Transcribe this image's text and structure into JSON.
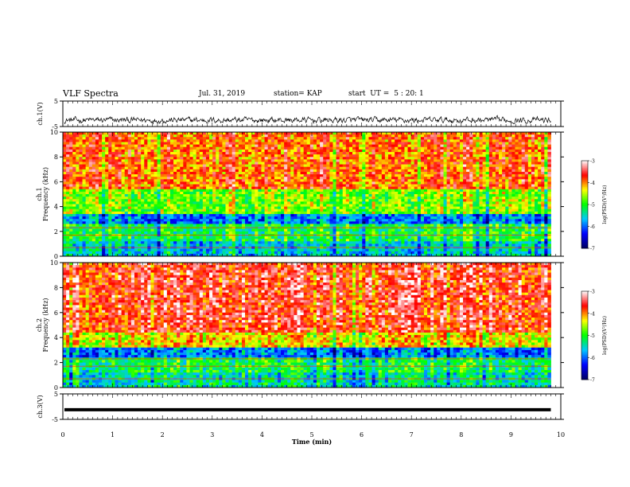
{
  "header": {
    "title": "VLF Spectra",
    "date": "Jul. 31, 2019",
    "station": "station= KAP",
    "start_label": "start  UT =",
    "start_value": "5 : 20: 1"
  },
  "chart_data": [
    {
      "type": "line",
      "name": "ch1-waveform",
      "ylabel": "ch.1(V)",
      "ylim": [
        -5,
        5
      ],
      "yticks": [
        5,
        -5
      ],
      "xlim": [
        0,
        10
      ],
      "approx_level_v": -2.5,
      "approx_range_v": [
        -4.6,
        0.2
      ]
    },
    {
      "type": "heatmap",
      "name": "ch1-spectrogram",
      "ylabel": "ch.1  Frequency (kHz)",
      "ylim": [
        0,
        10
      ],
      "yticks": [
        0,
        2,
        4,
        6,
        8,
        10
      ],
      "xlim": [
        0,
        10
      ],
      "data_end_min": 9.8,
      "approx_log_psd_by_band": [
        {
          "freq_khz": [
            0,
            1.2
          ],
          "value": -5.5
        },
        {
          "freq_khz": [
            1.2,
            2.6
          ],
          "value": -5.0
        },
        {
          "freq_khz": [
            2.6,
            3.4
          ],
          "value": -5.8
        },
        {
          "freq_khz": [
            3.4,
            5.5
          ],
          "value": -4.6
        },
        {
          "freq_khz": [
            5.5,
            10
          ],
          "value": -3.8
        }
      ],
      "colorbar": {
        "label": "log(PSD)(V²/Hz)",
        "range": [
          -7,
          -3
        ],
        "ticks": [
          -3,
          -4,
          -5,
          -6,
          -7
        ],
        "colors": [
          "#000060",
          "#0000ff",
          "#00c8ff",
          "#00ff00",
          "#ffff00",
          "#ff0000",
          "#ffffff"
        ]
      }
    },
    {
      "type": "heatmap",
      "name": "ch2-spectrogram",
      "ylabel": "ch.2  Frequency (kHz)",
      "ylim": [
        0,
        10
      ],
      "yticks": [
        0,
        2,
        4,
        6,
        8,
        10
      ],
      "xlim": [
        0,
        10
      ],
      "data_end_min": 9.8,
      "approx_log_psd_by_band": [
        {
          "freq_khz": [
            0,
            1.2
          ],
          "value": -5.4
        },
        {
          "freq_khz": [
            1.2,
            2.4
          ],
          "value": -5.1
        },
        {
          "freq_khz": [
            2.4,
            3.2
          ],
          "value": -5.9
        },
        {
          "freq_khz": [
            3.2,
            4.5
          ],
          "value": -4.3
        },
        {
          "freq_khz": [
            4.5,
            10
          ],
          "value": -3.6
        }
      ],
      "colorbar": {
        "label": "log(PSD)(V²/Hz)",
        "range": [
          -7,
          -3
        ],
        "ticks": [
          -3,
          -4,
          -5,
          -6,
          -7
        ],
        "colors": [
          "#000060",
          "#0000ff",
          "#00c8ff",
          "#00ff00",
          "#ffff00",
          "#ff0000",
          "#ffffff"
        ]
      }
    },
    {
      "type": "line",
      "name": "ch3-waveform",
      "ylabel": "ch.3(V)",
      "ylim": [
        -5,
        5
      ],
      "yticks": [
        5,
        -5
      ],
      "xlim": [
        0,
        10
      ],
      "xlabel": "Time  (min)",
      "xticks": [
        0,
        1,
        2,
        3,
        4,
        5,
        6,
        7,
        8,
        9,
        10
      ],
      "approx_level_v": -1.2
    }
  ]
}
